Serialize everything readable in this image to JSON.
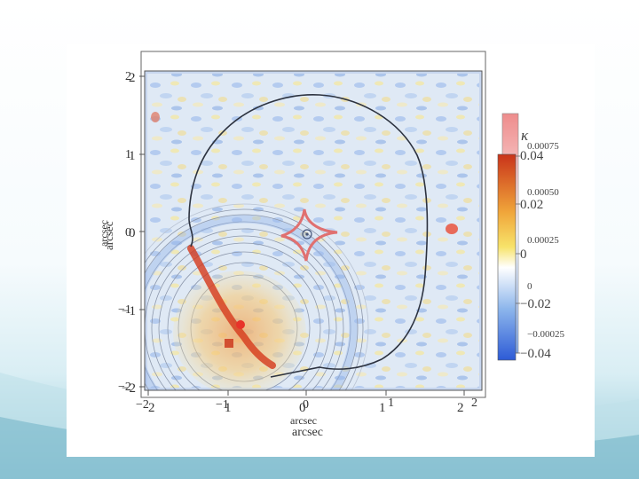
{
  "figure": {
    "x_ticks_front": [
      "2",
      "1",
      "0",
      "1",
      "2"
    ],
    "x_ticks_back": [
      "−2",
      "−1",
      "0",
      "1",
      "2"
    ],
    "y_ticks_front": [
      "2",
      "1",
      "0",
      "−1",
      "−2"
    ],
    "y_ticks_back": [
      "2",
      "1",
      "0",
      "−1",
      "−2"
    ],
    "xlabel_back": "arcsec",
    "xlabel_front": "arcsec",
    "ylabel_back": "arcsec",
    "ylabel_front": "arcsec",
    "colorbar_back": {
      "symbol": "κ",
      "labels": [
        "0.00075",
        "0.00050",
        "0.00025",
        "0",
        "−0.00025"
      ],
      "colors": [
        "#f08a8a",
        "#ffffff",
        "#7fa6e8"
      ]
    },
    "colorbar_front": {
      "labels": [
        "0.04",
        "0.02",
        "0",
        "−0.02",
        "−0.04"
      ],
      "colors": [
        "#d6401b",
        "#f5d24a",
        "#ffffff",
        "#7fb0e8",
        "#2f5fd8"
      ]
    }
  }
}
